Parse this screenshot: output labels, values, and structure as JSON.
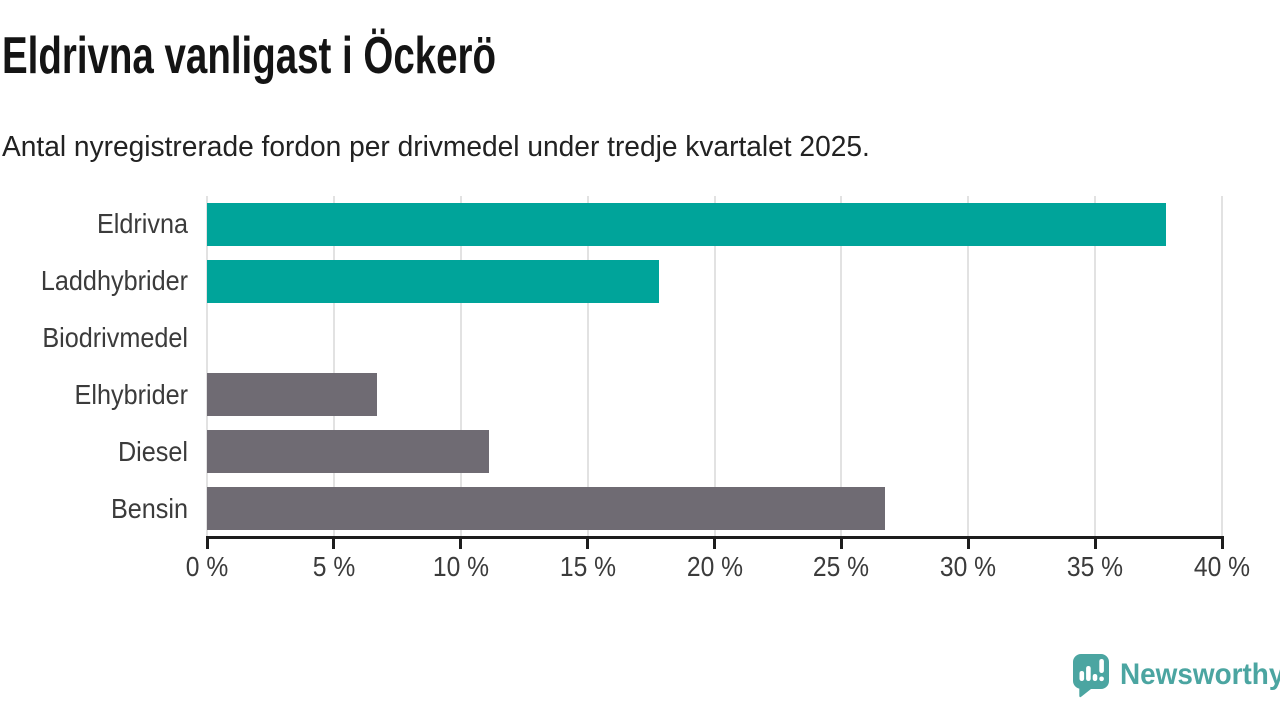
{
  "title": "Eldrivna vanligast i Öckerö",
  "subtitle": "Antal nyregistrerade fordon per drivmedel under tredje kvartalet 2025.",
  "chart_data": {
    "type": "bar",
    "orientation": "horizontal",
    "title": "Eldrivna vanligast i Öckerö",
    "subtitle": "Antal nyregistrerade fordon per drivmedel under tredje kvartalet 2025.",
    "categories": [
      "Eldrivna",
      "Laddhybrider",
      "Biodrivmedel",
      "Elhybrider",
      "Diesel",
      "Bensin"
    ],
    "values": [
      37.8,
      17.8,
      0,
      6.7,
      11.1,
      26.7
    ],
    "unit": "%",
    "bar_colors": [
      "#00a49a",
      "#00a49a",
      "#6f6b73",
      "#6f6b73",
      "#6f6b73",
      "#6f6b73"
    ],
    "highlight_color": "#00a49a",
    "default_color": "#6f6b73",
    "xlim": [
      0,
      40
    ],
    "x_tick_values": [
      0,
      5,
      10,
      15,
      20,
      25,
      30,
      35,
      40
    ],
    "x_tick_labels": [
      "0 %",
      "5 %",
      "10 %",
      "15 %",
      "20 %",
      "25 %",
      "30 %",
      "35 %",
      "40 %"
    ],
    "grid": true,
    "gridline_color": "#e2e2e2",
    "axis_color": "#1d1d1d",
    "label_color": "#3b3b3b",
    "legend": "none"
  },
  "branding": {
    "logo_text": "Newsworthy",
    "logo_color": "#4ba5a1",
    "logo_icon": "newsworthy-speech-bubble-chart-icon"
  }
}
